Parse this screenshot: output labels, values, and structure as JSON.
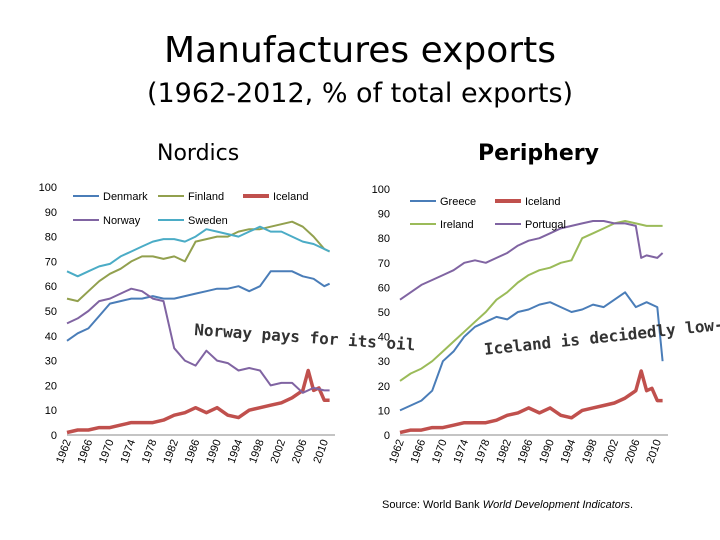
{
  "title": "Manufactures exports",
  "subtitle": "(1962-2012, % of total exports)",
  "source": {
    "prefix": "Source: World Bank ",
    "italic": "World Development Indicators",
    "suffix": "."
  },
  "colors": {
    "Denmark": "#4a7db8",
    "Finland": "#92a04e",
    "Iceland": "#c0504d",
    "Norway": "#8064a2",
    "Sweden": "#4bacc6",
    "Greece": "#4a7db8",
    "Ireland": "#9bbb59",
    "Portugal": "#8064a2"
  },
  "chart_data": [
    {
      "type": "line",
      "title": "Nordics",
      "ylim": [
        0,
        100
      ],
      "yticks": [
        0,
        10,
        20,
        30,
        40,
        50,
        60,
        70,
        80,
        90,
        100
      ],
      "xticks": [
        "1962",
        "1966",
        "1970",
        "1974",
        "1978",
        "1982",
        "1986",
        "1990",
        "1994",
        "1998",
        "2002",
        "2006",
        "2010"
      ],
      "legend": "top",
      "annotation": "Norway pays for its oil",
      "series": [
        {
          "name": "Denmark",
          "x": [
            1962,
            1964,
            1966,
            1968,
            1970,
            1972,
            1974,
            1976,
            1978,
            1980,
            1982,
            1984,
            1986,
            1988,
            1990,
            1992,
            1994,
            1996,
            1998,
            2000,
            2002,
            2004,
            2006,
            2008,
            2010,
            2011
          ],
          "values": [
            38,
            41,
            43,
            48,
            53,
            54,
            55,
            55,
            56,
            55,
            55,
            56,
            57,
            58,
            59,
            59,
            60,
            58,
            60,
            66,
            66,
            66,
            64,
            63,
            60,
            61
          ]
        },
        {
          "name": "Finland",
          "x": [
            1962,
            1964,
            1966,
            1968,
            1970,
            1972,
            1974,
            1976,
            1978,
            1980,
            1982,
            1984,
            1986,
            1988,
            1990,
            1992,
            1994,
            1996,
            1998,
            2000,
            2002,
            2004,
            2006,
            2008,
            2010,
            2011
          ],
          "values": [
            55,
            54,
            58,
            62,
            65,
            67,
            70,
            72,
            72,
            71,
            72,
            70,
            78,
            79,
            80,
            80,
            82,
            83,
            83,
            84,
            85,
            86,
            84,
            80,
            75,
            74
          ]
        },
        {
          "name": "Iceland",
          "x": [
            1962,
            1964,
            1966,
            1968,
            1970,
            1972,
            1974,
            1976,
            1978,
            1980,
            1982,
            1984,
            1986,
            1988,
            1990,
            1992,
            1994,
            1996,
            1998,
            2000,
            2002,
            2004,
            2006,
            2007,
            2008,
            2009,
            2010,
            2011
          ],
          "values": [
            1,
            2,
            2,
            3,
            3,
            4,
            5,
            5,
            5,
            6,
            8,
            9,
            11,
            9,
            11,
            8,
            7,
            10,
            11,
            12,
            13,
            15,
            18,
            26,
            18,
            19,
            14,
            14
          ]
        },
        {
          "name": "Norway",
          "x": [
            1962,
            1964,
            1966,
            1968,
            1970,
            1972,
            1974,
            1976,
            1978,
            1980,
            1982,
            1984,
            1986,
            1988,
            1990,
            1992,
            1994,
            1996,
            1998,
            2000,
            2002,
            2004,
            2006,
            2008,
            2010,
            2011
          ],
          "values": [
            45,
            47,
            50,
            54,
            55,
            57,
            59,
            58,
            55,
            54,
            35,
            30,
            28,
            34,
            30,
            29,
            26,
            27,
            26,
            20,
            21,
            21,
            17,
            19,
            18,
            18
          ]
        },
        {
          "name": "Sweden",
          "x": [
            1962,
            1964,
            1966,
            1968,
            1970,
            1972,
            1974,
            1976,
            1978,
            1980,
            1982,
            1984,
            1986,
            1988,
            1990,
            1992,
            1994,
            1996,
            1998,
            2000,
            2002,
            2004,
            2006,
            2008,
            2010,
            2011
          ],
          "values": [
            66,
            64,
            66,
            68,
            69,
            72,
            74,
            76,
            78,
            79,
            79,
            78,
            80,
            83,
            82,
            81,
            80,
            82,
            84,
            82,
            82,
            80,
            78,
            77,
            75,
            74
          ]
        }
      ]
    },
    {
      "type": "line",
      "title": "Periphery",
      "ylim": [
        0,
        100
      ],
      "yticks": [
        0,
        10,
        20,
        30,
        40,
        50,
        60,
        70,
        80,
        90,
        100
      ],
      "xticks": [
        "1962",
        "1966",
        "1970",
        "1974",
        "1978",
        "1982",
        "1986",
        "1990",
        "1994",
        "1998",
        "2002",
        "2006",
        "2010"
      ],
      "legend": "top",
      "annotation": "Iceland is decidedly low-tech",
      "series": [
        {
          "name": "Greece",
          "x": [
            1962,
            1964,
            1966,
            1968,
            1970,
            1972,
            1974,
            1976,
            1978,
            1980,
            1982,
            1984,
            1986,
            1988,
            1990,
            1992,
            1994,
            1996,
            1998,
            2000,
            2002,
            2004,
            2006,
            2008,
            2010,
            2011
          ],
          "values": [
            10,
            12,
            14,
            18,
            30,
            34,
            40,
            44,
            46,
            48,
            47,
            50,
            51,
            53,
            54,
            52,
            50,
            51,
            53,
            52,
            55,
            58,
            52,
            54,
            52,
            30
          ]
        },
        {
          "name": "Iceland",
          "x": [
            1962,
            1964,
            1966,
            1968,
            1970,
            1972,
            1974,
            1976,
            1978,
            1980,
            1982,
            1984,
            1986,
            1988,
            1990,
            1992,
            1994,
            1996,
            1998,
            2000,
            2002,
            2004,
            2006,
            2007,
            2008,
            2009,
            2010,
            2011
          ],
          "values": [
            1,
            2,
            2,
            3,
            3,
            4,
            5,
            5,
            5,
            6,
            8,
            9,
            11,
            9,
            11,
            8,
            7,
            10,
            11,
            12,
            13,
            15,
            18,
            26,
            18,
            19,
            14,
            14
          ]
        },
        {
          "name": "Ireland",
          "x": [
            1962,
            1964,
            1966,
            1968,
            1970,
            1972,
            1974,
            1976,
            1978,
            1980,
            1982,
            1984,
            1986,
            1988,
            1990,
            1992,
            1994,
            1996,
            1998,
            2000,
            2002,
            2004,
            2006,
            2008,
            2010,
            2011
          ],
          "values": [
            22,
            25,
            27,
            30,
            34,
            38,
            42,
            46,
            50,
            55,
            58,
            62,
            65,
            67,
            68,
            70,
            71,
            80,
            82,
            84,
            86,
            87,
            86,
            85,
            85,
            85
          ]
        },
        {
          "name": "Portugal",
          "x": [
            1962,
            1964,
            1966,
            1968,
            1970,
            1972,
            1974,
            1976,
            1978,
            1980,
            1982,
            1984,
            1986,
            1988,
            1990,
            1992,
            1994,
            1996,
            1998,
            2000,
            2002,
            2004,
            2006,
            2007,
            2008,
            2010,
            2011
          ],
          "values": [
            55,
            58,
            61,
            63,
            65,
            67,
            70,
            71,
            70,
            72,
            74,
            77,
            79,
            80,
            82,
            84,
            85,
            86,
            87,
            87,
            86,
            86,
            85,
            72,
            73,
            72,
            74
          ]
        }
      ]
    }
  ]
}
